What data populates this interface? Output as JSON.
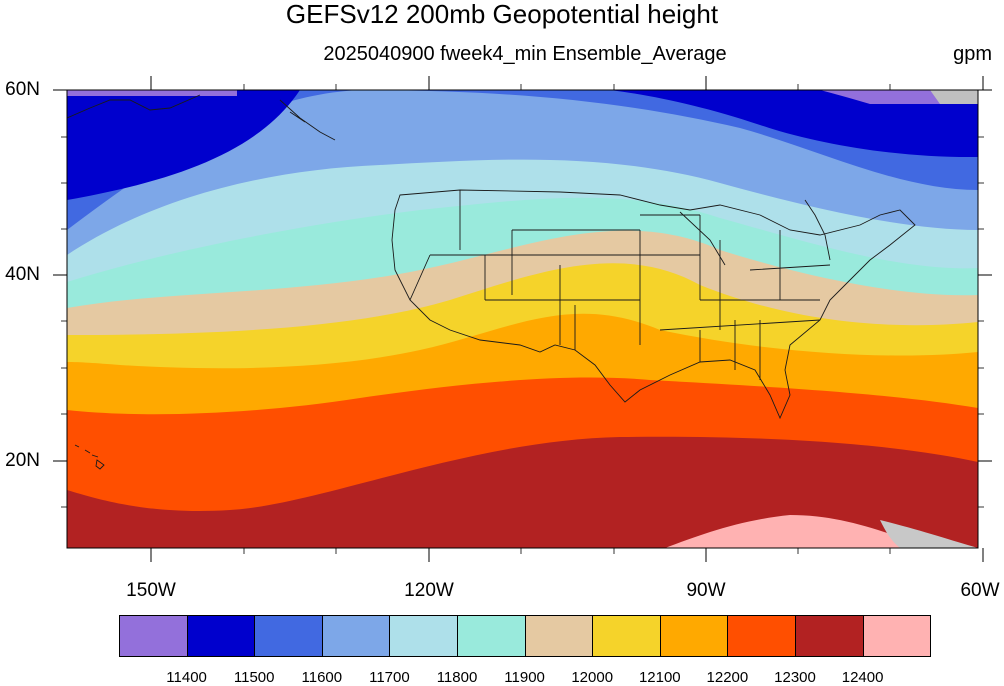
{
  "title": "GEFSv12 200mb Geopotential height",
  "subtitle": "2025040900 fweek4_min Ensemble_Average",
  "units": "gpm",
  "lat_labels": [
    "60N",
    "40N",
    "20N"
  ],
  "lon_labels": [
    "150W",
    "120W",
    "90W",
    "60W"
  ],
  "colorbar": {
    "colors": [
      "#9370db",
      "#0000cd",
      "#4169e1",
      "#7da7e8",
      "#aee0ea",
      "#99eadc",
      "#e5c9a2",
      "#f5d32a",
      "#ffa900",
      "#ff4f00",
      "#b22222",
      "#ffb2b2"
    ],
    "labels": [
      "11400",
      "11500",
      "11600",
      "11700",
      "11800",
      "11900",
      "12000",
      "12100",
      "12200",
      "12300",
      "12400"
    ]
  }
}
